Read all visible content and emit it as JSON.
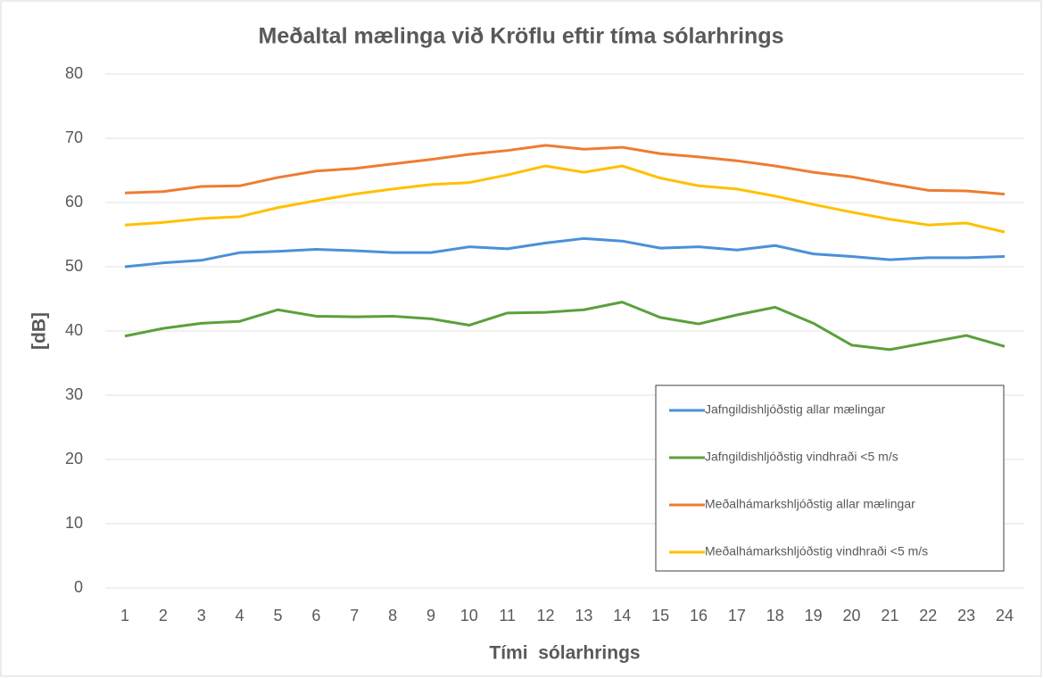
{
  "chart_data": {
    "type": "line",
    "title": "Meðaltal mælinga við Kröflu eftir tíma sólarhrings",
    "x_label": "Tími  sólarhrings",
    "y_label": "[dB]",
    "categories": [
      "1",
      "2",
      "3",
      "4",
      "5",
      "6",
      "7",
      "8",
      "9",
      "10",
      "11",
      "12",
      "13",
      "14",
      "15",
      "16",
      "17",
      "18",
      "19",
      "20",
      "21",
      "22",
      "23",
      "24"
    ],
    "series": [
      {
        "name": "Jafngildishljóðstig allar mælingar",
        "color": "#4a90d9",
        "values": [
          50.0,
          50.6,
          51.0,
          52.2,
          52.4,
          52.7,
          52.5,
          52.2,
          52.2,
          53.1,
          52.8,
          53.7,
          54.4,
          54.0,
          52.9,
          53.1,
          52.6,
          53.3,
          52.0,
          51.6,
          51.1,
          51.4,
          51.4,
          51.6
        ]
      },
      {
        "name": "Jafngildishljóðstig vindhraði <5 m/s",
        "color": "#5aa03c",
        "values": [
          39.2,
          40.4,
          41.2,
          41.5,
          43.3,
          42.3,
          42.2,
          42.3,
          41.9,
          40.9,
          42.8,
          42.9,
          43.3,
          44.5,
          42.1,
          41.1,
          42.5,
          43.7,
          41.2,
          37.8,
          37.1,
          38.2,
          39.3,
          37.6
        ]
      },
      {
        "name": "Meðalhámarkshljóðstig allar mælingar",
        "color": "#ed7d31",
        "values": [
          61.5,
          61.7,
          62.5,
          62.6,
          63.9,
          64.9,
          65.3,
          66.0,
          66.7,
          67.5,
          68.1,
          68.9,
          68.3,
          68.6,
          67.6,
          67.1,
          66.5,
          65.7,
          64.7,
          64.0,
          62.9,
          61.9,
          61.8,
          61.3
        ]
      },
      {
        "name": "Meðalhámarkshljóðstig vindhraði <5 m/s",
        "color": "#ffc000",
        "values": [
          56.5,
          56.9,
          57.5,
          57.8,
          59.2,
          60.3,
          61.3,
          62.1,
          62.8,
          63.1,
          64.3,
          65.7,
          64.7,
          65.7,
          63.8,
          62.6,
          62.1,
          61.0,
          59.7,
          58.5,
          57.4,
          56.5,
          56.8,
          55.4
        ]
      }
    ],
    "ylim": [
      0,
      80
    ],
    "yticks": [
      0,
      10,
      20,
      30,
      40,
      50,
      60,
      70,
      80
    ],
    "grid": true,
    "legend": "lower right"
  }
}
